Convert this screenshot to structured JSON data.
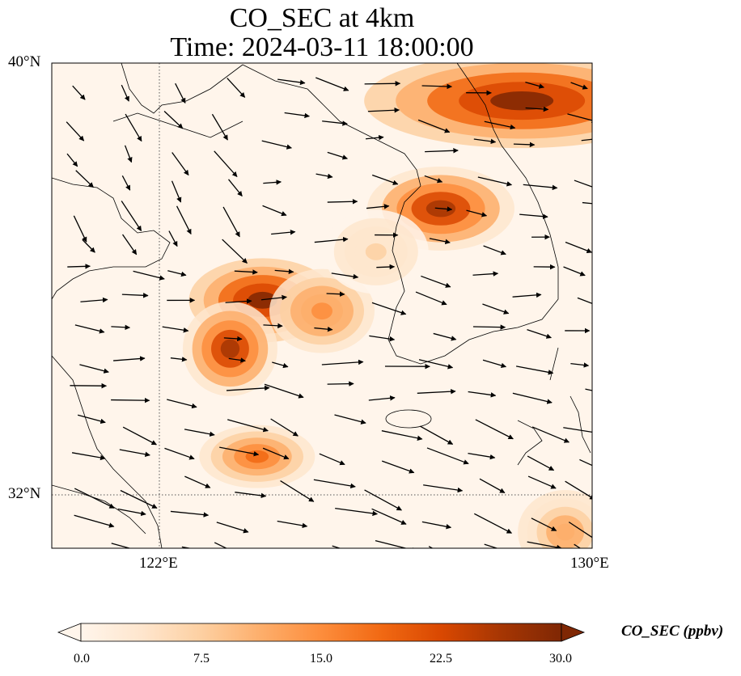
{
  "title_line1": "CO_SEC at 4km",
  "title_line2": "Time: 2024-03-11 18:00:00",
  "lat_labels": [
    "40°N",
    "32°N"
  ],
  "lon_labels": [
    "122°E",
    "130°E"
  ],
  "colorbar": {
    "label": "CO_SEC (ppbv)",
    "ticks": [
      "0.0",
      "7.5",
      "15.0",
      "22.5",
      "30.0"
    ],
    "min": 0,
    "max": 30,
    "colormap": [
      "#fff5eb",
      "#fee6ce",
      "#fdd0a2",
      "#fdae6b",
      "#fd8d3c",
      "#f16913",
      "#d94801",
      "#a63603",
      "#7f2704"
    ],
    "extend": "both"
  },
  "map": {
    "lon_range": [
      120,
      130
    ],
    "lat_range": [
      31,
      40
    ],
    "gridlines": {
      "lons": [
        122
      ],
      "lats": [
        32
      ],
      "style": "dotted"
    }
  },
  "concentration_blobs": [
    {
      "lon": 128.7,
      "lat": 39.3,
      "value": 30
    },
    {
      "lon": 127.2,
      "lat": 37.3,
      "value": 28
    },
    {
      "lon": 123.9,
      "lat": 35.6,
      "value": 30
    },
    {
      "lon": 123.3,
      "lat": 34.7,
      "value": 26
    },
    {
      "lon": 125.0,
      "lat": 35.4,
      "value": 16
    },
    {
      "lon": 123.8,
      "lat": 32.7,
      "value": 20
    },
    {
      "lon": 129.5,
      "lat": 31.3,
      "value": 12
    },
    {
      "lon": 126.0,
      "lat": 36.5,
      "value": 6
    }
  ],
  "wind_vectors": "uniform westerly-to-northwesterly flow"
}
